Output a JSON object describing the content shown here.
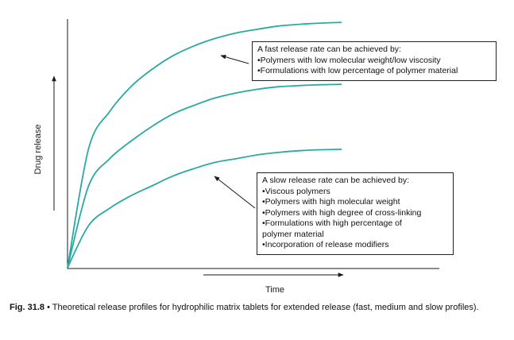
{
  "chart_data": {
    "type": "line",
    "xlabel": "Time",
    "ylabel": "Drug release",
    "curve_color": "#2aa9a3",
    "series": [
      {
        "values": [
          0.0,
          0.48,
          0.63,
          0.73,
          0.8,
          0.855,
          0.895,
          0.925,
          0.947,
          0.962,
          0.975,
          0.982,
          0.987,
          0.99
        ]
      },
      {
        "values": [
          0.0,
          0.33,
          0.44,
          0.51,
          0.57,
          0.62,
          0.655,
          0.685,
          0.705,
          0.72,
          0.73,
          0.735,
          0.738,
          0.74
        ]
      },
      {
        "values": [
          0.0,
          0.17,
          0.24,
          0.29,
          0.33,
          0.37,
          0.4,
          0.425,
          0.44,
          0.455,
          0.465,
          0.472,
          0.476,
          0.478
        ]
      }
    ],
    "annotations": {
      "fast": {
        "heading": "A fast release rate can be achieved by:",
        "items": [
          "•Polymers with low molecular weight/low viscosity",
          "•Formulations with low percentage of polymer material"
        ]
      },
      "slow": {
        "heading": "A slow release rate can be achieved by:",
        "items": [
          "•Viscous polymers",
          "•Polymers with high molecular weight",
          "•Polymers with high degree of cross-linking",
          "•Formulations with high percentage of",
          "polymer material",
          "•Incorporation of release modifiers"
        ]
      }
    }
  },
  "caption": {
    "figure_label": "Fig. 31.8",
    "text": " • Theoretical release profiles for hydrophilic matrix tablets for extended release (fast, medium and slow profiles)."
  }
}
